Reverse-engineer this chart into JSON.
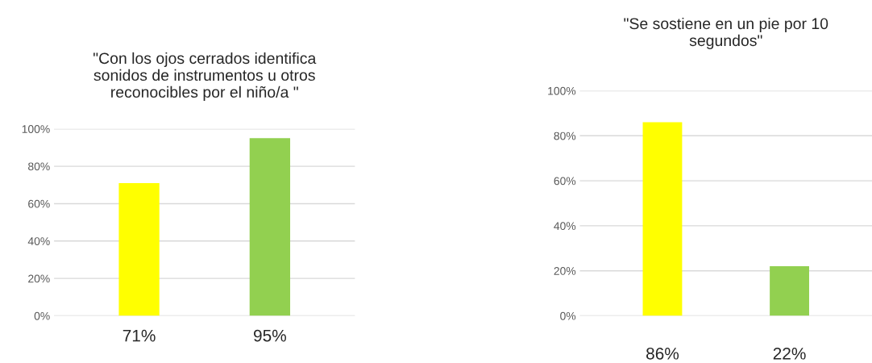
{
  "chart_data": [
    {
      "type": "bar",
      "title": "\"Con los ojos cerrados identifica\nsonidos de instrumentos u otros\nreconocibles por el niño/a \"",
      "categories": [
        null,
        null
      ],
      "values": [
        71,
        95
      ],
      "colors": [
        "#ffff00",
        "#92d050"
      ],
      "value_labels": [
        "71%",
        "95%"
      ],
      "ylim": [
        0,
        100
      ],
      "yticks": [
        {
          "value": 0,
          "label": "0%"
        },
        {
          "value": 20,
          "label": "20%"
        },
        {
          "value": 40,
          "label": "40%"
        },
        {
          "value": 60,
          "label": "60%"
        },
        {
          "value": 80,
          "label": "80%"
        },
        {
          "value": 100,
          "label": "100%"
        }
      ],
      "grid": "y"
    },
    {
      "type": "bar",
      "title": "\"Se sostiene en un pie por 10\nsegundos\"",
      "categories": [
        null,
        null
      ],
      "values": [
        86,
        22
      ],
      "colors": [
        "#ffff00",
        "#92d050"
      ],
      "value_labels": [
        "86%",
        "22%"
      ],
      "ylim": [
        0,
        100
      ],
      "yticks": [
        {
          "value": 0,
          "label": "0%"
        },
        {
          "value": 20,
          "label": "20%"
        },
        {
          "value": 40,
          "label": "40%"
        },
        {
          "value": 60,
          "label": "60%"
        },
        {
          "value": 80,
          "label": "80%"
        },
        {
          "value": 100,
          "label": "100%"
        }
      ],
      "grid": "y"
    }
  ]
}
